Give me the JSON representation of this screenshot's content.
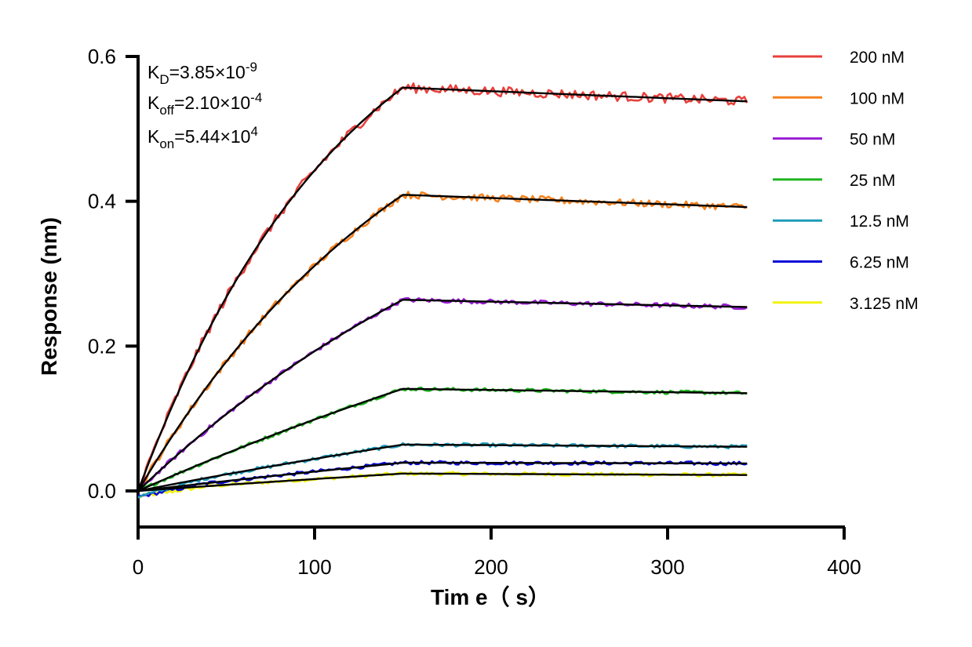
{
  "chart_data": {
    "type": "line",
    "title": "",
    "xlabel": "Tim e（ s）",
    "ylabel": "Response (nm)",
    "xlim": [
      0,
      400
    ],
    "ylim": [
      -0.05,
      0.6
    ],
    "x_ticks": [
      "0",
      "100",
      "200",
      "300",
      "400"
    ],
    "y_ticks": [
      "0.0",
      "0.2",
      "0.4",
      "0.6"
    ],
    "x_tick_values": [
      0,
      100,
      200,
      300,
      400
    ],
    "y_tick_values": [
      0.0,
      0.2,
      0.4,
      0.6
    ],
    "grid": false,
    "legend_position": "right",
    "kinetics": [
      {
        "label": "K",
        "sub": "D",
        "value": "=3.85×10",
        "exp": "-9"
      },
      {
        "label": "K",
        "sub": "off",
        "value": "=2.10×10",
        "exp": "-4"
      },
      {
        "label": "K",
        "sub": "on",
        "value": "=5.44×10",
        "exp": "4"
      }
    ],
    "association_end": 150,
    "dissociation_end": 345,
    "fit_color": "#000000",
    "series": [
      {
        "name": "200 nM",
        "color": "#e8413c",
        "peak": 0.557,
        "end": 0.538,
        "curvature": 0.0085
      },
      {
        "name": "100 nM",
        "color": "#f5821f",
        "peak": 0.409,
        "end": 0.392,
        "curvature": 0.006
      },
      {
        "name": "50 nM",
        "color": "#9a1fd6",
        "peak": 0.264,
        "end": 0.254,
        "curvature": 0.004
      },
      {
        "name": "25 nM",
        "color": "#1fb51f",
        "peak": 0.141,
        "end": 0.135,
        "curvature": 0.002
      },
      {
        "name": "12.5 nM",
        "color": "#1f9bb8",
        "peak": 0.064,
        "end": 0.061,
        "curvature": 0.0015
      },
      {
        "name": "6.25 nM",
        "color": "#0a0ad6",
        "peak": 0.039,
        "end": 0.038,
        "curvature": 0.001
      },
      {
        "name": "3.125 nM",
        "color": "#f2f20a",
        "peak": 0.024,
        "end": 0.022,
        "curvature": 0.001
      }
    ]
  }
}
